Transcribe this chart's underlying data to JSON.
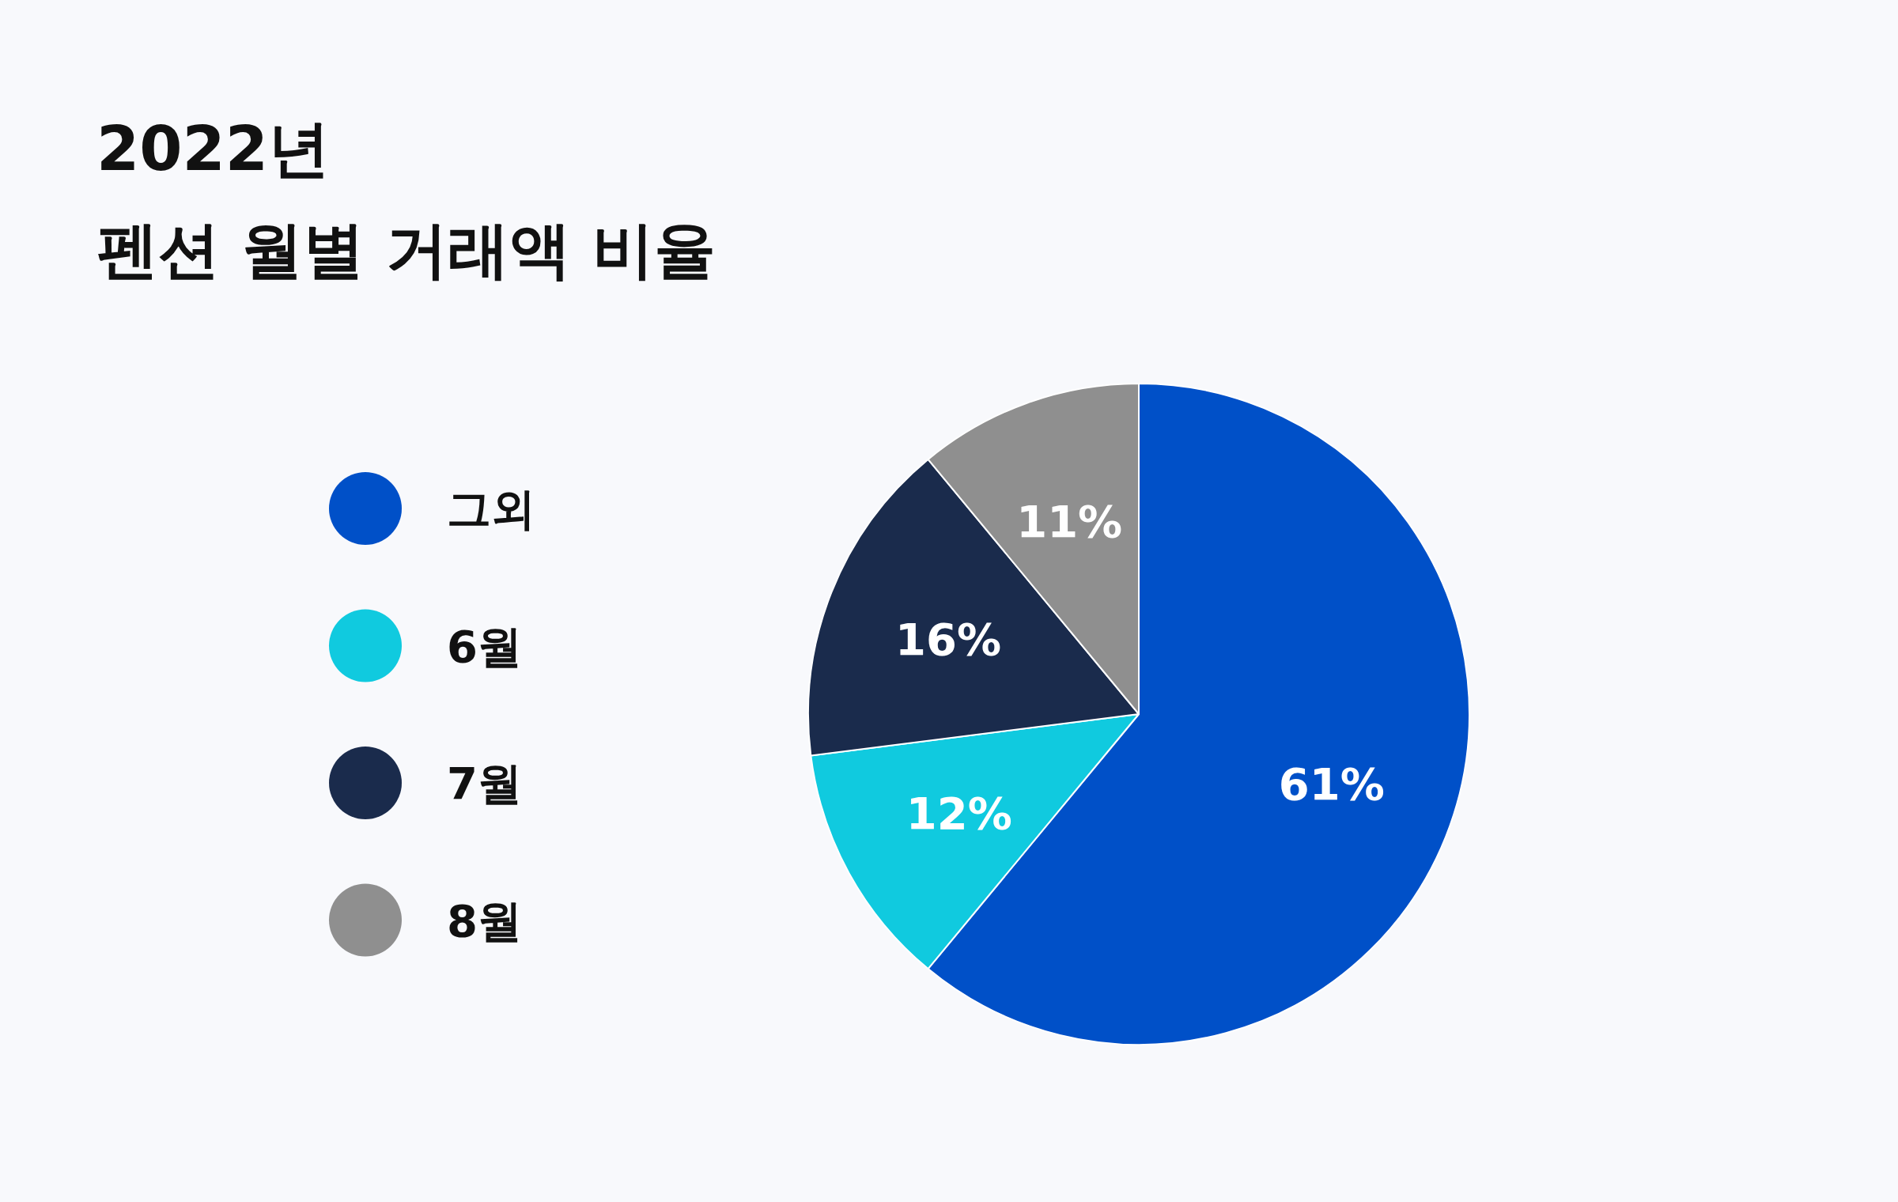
{
  "chart_data": {
    "type": "pie",
    "title": "2022년\n펜션 월별 거래액 비율",
    "categories": [
      "그외",
      "6월",
      "7월",
      "8월"
    ],
    "values": [
      61,
      12,
      16,
      11
    ],
    "colors": [
      "#0050c8",
      "#10cadf",
      "#1a2b4c",
      "#8f8f8f"
    ],
    "value_labels": [
      "61%",
      "12%",
      "16%",
      "11%"
    ],
    "legend": "left"
  }
}
